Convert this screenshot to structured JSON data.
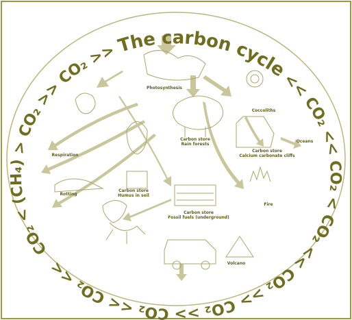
{
  "title": "The carbon cycle",
  "ring_before": "CO₂ < (CH₄) > CO₂ >> CO₂ >> ",
  "ring_after": " << CO₂ << CO₂ < CO₂ << CO₂ >> CO₂ >> CO₂ << CO₂ <<",
  "labels": [
    {
      "lines": [
        "Photosynthesis"
      ]
    },
    {
      "lines": [
        "Coccoliths"
      ]
    },
    {
      "lines": [
        "Carbon store",
        "Calcium carbonate cliffs"
      ]
    },
    {
      "lines": [
        "Oceans"
      ]
    },
    {
      "lines": [
        "Carbon store",
        "Rain forests"
      ]
    },
    {
      "lines": [
        "Respiration"
      ]
    },
    {
      "lines": [
        "Rotting"
      ]
    },
    {
      "lines": [
        "Carbon store",
        "Humus in soil"
      ]
    },
    {
      "lines": [
        "Fire"
      ]
    },
    {
      "lines": [
        "Carbon store",
        "Fossil fuels (underground)"
      ]
    },
    {
      "lines": [
        "Volcano"
      ]
    }
  ]
}
